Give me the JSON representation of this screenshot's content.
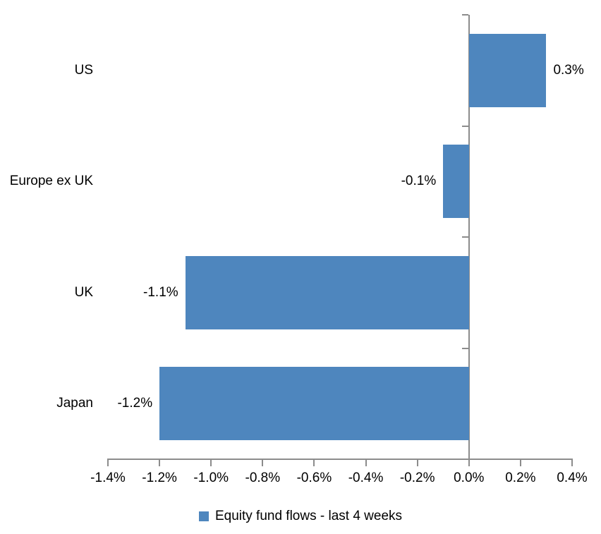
{
  "chart_data": {
    "type": "bar",
    "orientation": "horizontal",
    "title": "",
    "xlabel": "",
    "ylabel": "",
    "categories": [
      "US",
      "Europe ex UK",
      "UK",
      "Japan"
    ],
    "series": [
      {
        "name": "Equity fund flows - last 4 weeks",
        "values": [
          0.3,
          -0.1,
          -1.1,
          -1.2
        ],
        "data_labels": [
          "0.3%",
          "-0.1%",
          "-1.1%",
          "-1.2%"
        ]
      }
    ],
    "xlim": [
      -1.4,
      0.4
    ],
    "x_tick_values": [
      -1.4,
      -1.2,
      -1.0,
      -0.8,
      -0.6,
      -0.4,
      -0.2,
      0.0,
      0.2,
      0.4
    ],
    "x_tick_labels": [
      "-1.4%",
      "-1.2%",
      "-1.0%",
      "-0.8%",
      "-0.6%",
      "-0.4%",
      "-0.2%",
      "0.0%",
      "0.2%",
      "0.4%"
    ],
    "grid": false,
    "legend_position": "bottom",
    "bar_color": "#4E86BE",
    "axis_color": "#8C8C8C",
    "text_color": "#000000",
    "background_color": "#FFFFFF"
  },
  "legend": {
    "label": "Equity fund flows - last 4 weeks",
    "swatch_color": "#4E86BE"
  }
}
